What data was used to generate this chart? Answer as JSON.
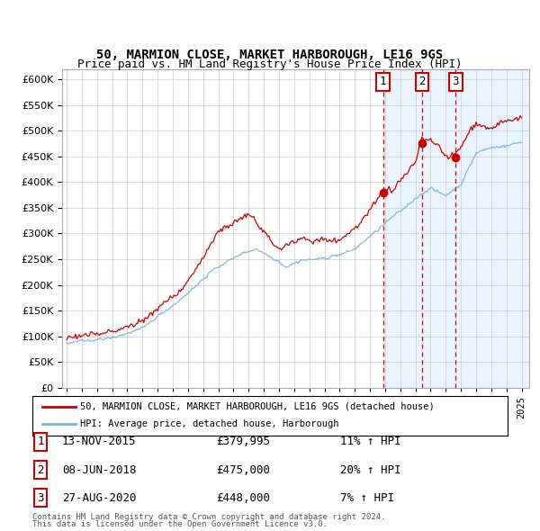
{
  "title": "50, MARMION CLOSE, MARKET HARBOROUGH, LE16 9GS",
  "subtitle": "Price paid vs. HM Land Registry's House Price Index (HPI)",
  "legend_line1": "50, MARMION CLOSE, MARKET HARBOROUGH, LE16 9GS (detached house)",
  "legend_line2": "HPI: Average price, detached house, Harborough",
  "footnote1": "Contains HM Land Registry data © Crown copyright and database right 2024.",
  "footnote2": "This data is licensed under the Open Government Licence v3.0.",
  "sales": [
    {
      "label": "1",
      "date": "13-NOV-2015",
      "price": 379995,
      "pct": "11%",
      "dir": "↑",
      "x": 2015.87
    },
    {
      "label": "2",
      "date": "08-JUN-2018",
      "price": 475000,
      "pct": "20%",
      "dir": "↑",
      "x": 2018.44
    },
    {
      "label": "3",
      "date": "27-AUG-2020",
      "price": 448000,
      "pct": "7%",
      "dir": "↑",
      "x": 2020.66
    }
  ],
  "hpi_color": "#7bafd4",
  "price_color": "#cc0000",
  "dashed_color": "#cc0000",
  "highlight_color": "#ddeeff",
  "ylim": [
    0,
    620000
  ],
  "yticks": [
    0,
    50000,
    100000,
    150000,
    200000,
    250000,
    300000,
    350000,
    400000,
    450000,
    500000,
    550000,
    600000
  ],
  "xlim": [
    1994.7,
    2025.5
  ],
  "background_color": "#ffffff",
  "grid_color": "#cccccc",
  "hpi_seed": 42,
  "red_seed": 99
}
